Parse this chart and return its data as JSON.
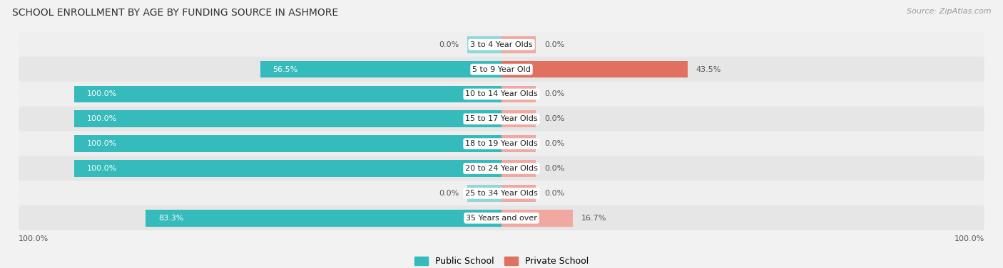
{
  "title": "SCHOOL ENROLLMENT BY AGE BY FUNDING SOURCE IN ASHMORE",
  "source": "Source: ZipAtlas.com",
  "categories": [
    "3 to 4 Year Olds",
    "5 to 9 Year Old",
    "10 to 14 Year Olds",
    "15 to 17 Year Olds",
    "18 to 19 Year Olds",
    "20 to 24 Year Olds",
    "25 to 34 Year Olds",
    "35 Years and over"
  ],
  "public_values": [
    0.0,
    56.5,
    100.0,
    100.0,
    100.0,
    100.0,
    0.0,
    83.3
  ],
  "private_values": [
    0.0,
    43.5,
    0.0,
    0.0,
    0.0,
    0.0,
    0.0,
    16.7
  ],
  "public_color": "#35BBBB",
  "private_color": "#E07060",
  "public_color_light": "#90D8D8",
  "private_color_light": "#F0A8A0",
  "row_bg_even": "#EFEFEF",
  "row_bg_odd": "#E6E6E6",
  "x_left_label": "100.0%",
  "x_right_label": "100.0%",
  "legend_public": "Public School",
  "legend_private": "Private School",
  "stub_size": 8.0
}
